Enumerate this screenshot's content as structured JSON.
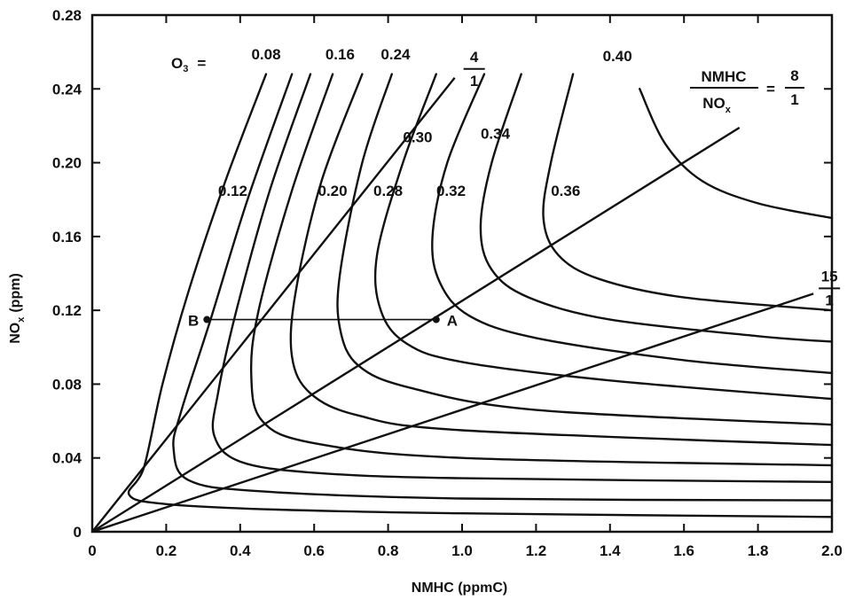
{
  "chart_data": {
    "type": "line",
    "title": "",
    "xlabel": "NMHC (ppmC)",
    "ylabel": "NO",
    "ylabel_sub": "x",
    "ylabel_unit": "(ppm)",
    "xlim": [
      0,
      2.0
    ],
    "ylim": [
      0,
      0.28
    ],
    "x_ticks": [
      "0",
      "0.2",
      "0.4",
      "0.6",
      "0.8",
      "1.0",
      "1.2",
      "1.4",
      "1.6",
      "1.8",
      "2.0"
    ],
    "x_tick_values": [
      0,
      0.2,
      0.4,
      0.6,
      0.8,
      1.0,
      1.2,
      1.4,
      1.6,
      1.8,
      2.0
    ],
    "y_ticks": [
      "0",
      "0.04",
      "0.08",
      "0.12",
      "0.16",
      "0.20",
      "0.24",
      "0.28"
    ],
    "y_tick_values": [
      0,
      0.04,
      0.08,
      0.12,
      0.16,
      0.2,
      0.24,
      0.28
    ],
    "grid": false,
    "legend": "none",
    "ozone_prefix": "O",
    "ozone_prefix_sub": "3",
    "ozone_prefix_eq": "=",
    "isopleths": [
      {
        "name": "0.08",
        "label": "0.08",
        "label_at": [
          0.47,
          0.256
        ],
        "points": [
          [
            0.47,
            0.248
          ],
          [
            0.36,
            0.19
          ],
          [
            0.26,
            0.13
          ],
          [
            0.19,
            0.08
          ],
          [
            0.14,
            0.035
          ],
          [
            0.1,
            0.02
          ],
          [
            0.2,
            0.015
          ],
          [
            0.5,
            0.012
          ],
          [
            1.0,
            0.01
          ],
          [
            2.0,
            0.008
          ]
        ]
      },
      {
        "name": "0.12",
        "label": "0.12",
        "label_at": [
          0.38,
          0.182
        ],
        "points": [
          [
            0.54,
            0.248
          ],
          [
            0.42,
            0.18
          ],
          [
            0.32,
            0.115
          ],
          [
            0.24,
            0.065
          ],
          [
            0.22,
            0.045
          ],
          [
            0.26,
            0.028
          ],
          [
            0.45,
            0.022
          ],
          [
            1.0,
            0.018
          ],
          [
            2.0,
            0.017
          ]
        ]
      },
      {
        "name": "0.16",
        "label": "0.16",
        "label_at": [
          0.67,
          0.256
        ],
        "points": [
          [
            0.59,
            0.248
          ],
          [
            0.48,
            0.185
          ],
          [
            0.39,
            0.12
          ],
          [
            0.34,
            0.075
          ],
          [
            0.33,
            0.052
          ],
          [
            0.4,
            0.038
          ],
          [
            0.6,
            0.032
          ],
          [
            1.0,
            0.029
          ],
          [
            2.0,
            0.027
          ]
        ]
      },
      {
        "name": "0.20",
        "label": "0.20",
        "label_at": [
          0.65,
          0.182
        ],
        "points": [
          [
            0.65,
            0.248
          ],
          [
            0.54,
            0.185
          ],
          [
            0.45,
            0.12
          ],
          [
            0.43,
            0.085
          ],
          [
            0.46,
            0.06
          ],
          [
            0.6,
            0.048
          ],
          [
            1.0,
            0.04
          ],
          [
            2.0,
            0.036
          ]
        ]
      },
      {
        "name": "0.24",
        "label": "0.24",
        "label_at": [
          0.82,
          0.256
        ],
        "points": [
          [
            0.73,
            0.248
          ],
          [
            0.62,
            0.19
          ],
          [
            0.55,
            0.13
          ],
          [
            0.54,
            0.095
          ],
          [
            0.59,
            0.075
          ],
          [
            0.72,
            0.063
          ],
          [
            1.0,
            0.055
          ],
          [
            2.0,
            0.047
          ]
        ]
      },
      {
        "name": "0.28",
        "label": "0.28",
        "label_at": [
          0.8,
          0.182
        ],
        "points": [
          [
            0.81,
            0.248
          ],
          [
            0.73,
            0.2
          ],
          [
            0.67,
            0.14
          ],
          [
            0.67,
            0.11
          ],
          [
            0.72,
            0.09
          ],
          [
            0.86,
            0.078
          ],
          [
            1.2,
            0.066
          ],
          [
            2.0,
            0.058
          ]
        ]
      },
      {
        "name": "0.30",
        "label": "0.30",
        "label_at": [
          0.88,
          0.211
        ],
        "points": [
          [
            0.93,
            0.248
          ],
          [
            0.84,
            0.2
          ],
          [
            0.77,
            0.15
          ],
          [
            0.78,
            0.12
          ],
          [
            0.85,
            0.102
          ],
          [
            1.0,
            0.092
          ],
          [
            1.4,
            0.082
          ],
          [
            2.0,
            0.072
          ]
        ]
      },
      {
        "name": "0.32",
        "label": "0.32",
        "label_at": [
          0.97,
          0.182
        ],
        "points": [
          [
            1.06,
            0.248
          ],
          [
            0.96,
            0.2
          ],
          [
            0.92,
            0.16
          ],
          [
            0.94,
            0.135
          ],
          [
            1.02,
            0.117
          ],
          [
            1.2,
            0.105
          ],
          [
            1.6,
            0.093
          ],
          [
            2.0,
            0.086
          ]
        ]
      },
      {
        "name": "0.34",
        "label": "0.34",
        "label_at": [
          1.09,
          0.213
        ],
        "points": [
          [
            1.16,
            0.248
          ],
          [
            1.08,
            0.2
          ],
          [
            1.05,
            0.165
          ],
          [
            1.08,
            0.142
          ],
          [
            1.18,
            0.127
          ],
          [
            1.4,
            0.115
          ],
          [
            1.8,
            0.106
          ],
          [
            2.0,
            0.103
          ]
        ]
      },
      {
        "name": "0.36",
        "label": "0.36",
        "label_at": [
          1.28,
          0.182
        ],
        "points": [
          [
            1.3,
            0.248
          ],
          [
            1.24,
            0.2
          ],
          [
            1.22,
            0.17
          ],
          [
            1.26,
            0.15
          ],
          [
            1.37,
            0.137
          ],
          [
            1.6,
            0.127
          ],
          [
            2.0,
            0.12
          ]
        ]
      },
      {
        "name": "0.40",
        "label": "0.40",
        "label_at": [
          1.42,
          0.255
        ],
        "points": [
          [
            1.48,
            0.24
          ],
          [
            1.55,
            0.21
          ],
          [
            1.65,
            0.19
          ],
          [
            1.8,
            0.178
          ],
          [
            2.0,
            0.17
          ]
        ]
      }
    ],
    "ratio_lines": [
      {
        "name": "4/1",
        "numerator": "4",
        "denominator": "1",
        "points": [
          [
            0,
            0
          ],
          [
            0.98,
            0.246
          ]
        ]
      },
      {
        "name": "8/1",
        "numerator": "8",
        "denominator": "1",
        "points": [
          [
            0,
            0
          ],
          [
            1.75,
            0.219
          ]
        ]
      },
      {
        "name": "15/1",
        "numerator": "15",
        "denominator": "1",
        "points": [
          [
            0,
            0
          ],
          [
            1.95,
            0.129
          ]
        ]
      }
    ],
    "ratio_label": {
      "numerator": "NMHC",
      "denominator_main": "NO",
      "denominator_sub": "x",
      "equals": "="
    },
    "points": [
      {
        "name": "B",
        "label": "B",
        "x": 0.31,
        "y": 0.115
      },
      {
        "name": "A",
        "label": "A",
        "x": 0.93,
        "y": 0.115
      }
    ],
    "connector": {
      "from": "B",
      "to": "A"
    }
  },
  "colors": {
    "ink": "#111111",
    "background": "#ffffff"
  }
}
